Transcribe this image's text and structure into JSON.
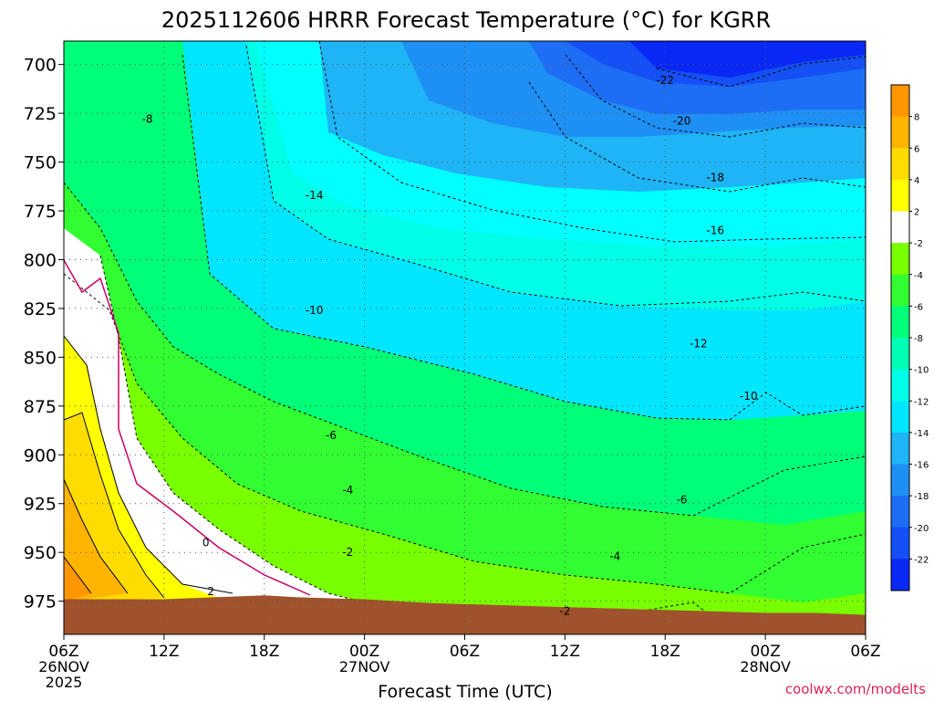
{
  "chart_data": {
    "type": "filled-contour",
    "title": "2025112606 HRRR Forecast Temperature (°C) for KGRR",
    "xlabel": "Forecast Time (UTC)",
    "credit": "coolwx.com/modelts",
    "x_ticks": [
      {
        "hour": 0,
        "label": "06Z",
        "sub": [
          "26NOV",
          "2025"
        ]
      },
      {
        "hour": 6,
        "label": "12Z",
        "sub": []
      },
      {
        "hour": 12,
        "label": "18Z",
        "sub": []
      },
      {
        "hour": 18,
        "label": "00Z",
        "sub": [
          "27NOV"
        ]
      },
      {
        "hour": 24,
        "label": "06Z",
        "sub": []
      },
      {
        "hour": 30,
        "label": "12Z",
        "sub": []
      },
      {
        "hour": 36,
        "label": "18Z",
        "sub": []
      },
      {
        "hour": 42,
        "label": "00Z",
        "sub": [
          "28NOV"
        ]
      },
      {
        "hour": 48,
        "label": "06Z",
        "sub": []
      }
    ],
    "x_range_hours": [
      0,
      48
    ],
    "y_ticks": [
      700,
      725,
      750,
      775,
      800,
      825,
      850,
      875,
      900,
      925,
      950,
      975
    ],
    "y_range_hPa": [
      688,
      992
    ],
    "y_axis": "pressure (hPa), increasing downward",
    "grid": true,
    "colorbar": {
      "levels": [
        -24,
        -22,
        -20,
        -18,
        -16,
        -14,
        -12,
        -10,
        -8,
        -6,
        -4,
        -2,
        2,
        4,
        6,
        8,
        10
      ],
      "labels": [
        "-22",
        "-20",
        "-18",
        "-16",
        "-14",
        "-12",
        "-10",
        "-8",
        "-6",
        "-4",
        "-2",
        "2",
        "4",
        "6",
        "8"
      ],
      "colors": [
        "#0a28f5",
        "#1450f5",
        "#1e6ef5",
        "#1e90f5",
        "#1eb4f5",
        "#00e6ff",
        "#00ffe6",
        "#00ffb4",
        "#00ff78",
        "#32ff32",
        "#78ff00",
        "#ffffff",
        "#ffff00",
        "#ffdc00",
        "#ffb400",
        "#ff9600"
      ]
    },
    "surface_pressure_hPa": [
      {
        "hour": 0,
        "p": 974
      },
      {
        "hour": 6,
        "p": 974
      },
      {
        "hour": 9,
        "p": 973
      },
      {
        "hour": 12,
        "p": 972
      },
      {
        "hour": 14,
        "p": 973
      },
      {
        "hour": 18,
        "p": 974
      },
      {
        "hour": 22,
        "p": 976
      },
      {
        "hour": 26,
        "p": 977
      },
      {
        "hour": 30,
        "p": 978
      },
      {
        "hour": 34,
        "p": 979
      },
      {
        "hour": 38,
        "p": 980
      },
      {
        "hour": 42,
        "p": 981
      },
      {
        "hour": 45,
        "p": 981
      },
      {
        "hour": 48,
        "p": 982
      }
    ],
    "contour_labels": [
      {
        "value": "-22",
        "hour": 36.0,
        "p": 708
      },
      {
        "value": "-20",
        "hour": 37.0,
        "p": 729
      },
      {
        "value": "-18",
        "hour": 39.0,
        "p": 758
      },
      {
        "value": "-16",
        "hour": 39.0,
        "p": 785
      },
      {
        "value": "-14",
        "hour": 15.0,
        "p": 767
      },
      {
        "value": "-12",
        "hour": 38.0,
        "p": 843
      },
      {
        "value": "-10",
        "hour": 15.0,
        "p": 826
      },
      {
        "value": "-10",
        "hour": 41.0,
        "p": 870
      },
      {
        "value": "-8",
        "hour": 5.0,
        "p": 728
      },
      {
        "value": "-6",
        "hour": 16.0,
        "p": 890
      },
      {
        "value": "-6",
        "hour": 37.0,
        "p": 923
      },
      {
        "value": "-4",
        "hour": 17.0,
        "p": 918
      },
      {
        "value": "-4",
        "hour": 33.0,
        "p": 952
      },
      {
        "value": "-2",
        "hour": 17.0,
        "p": 950
      },
      {
        "value": "-2",
        "hour": 30.0,
        "p": 980
      },
      {
        "value": "0",
        "hour": 8.5,
        "p": 945
      },
      {
        "value": "2",
        "hour": 8.8,
        "p": 970
      }
    ]
  }
}
